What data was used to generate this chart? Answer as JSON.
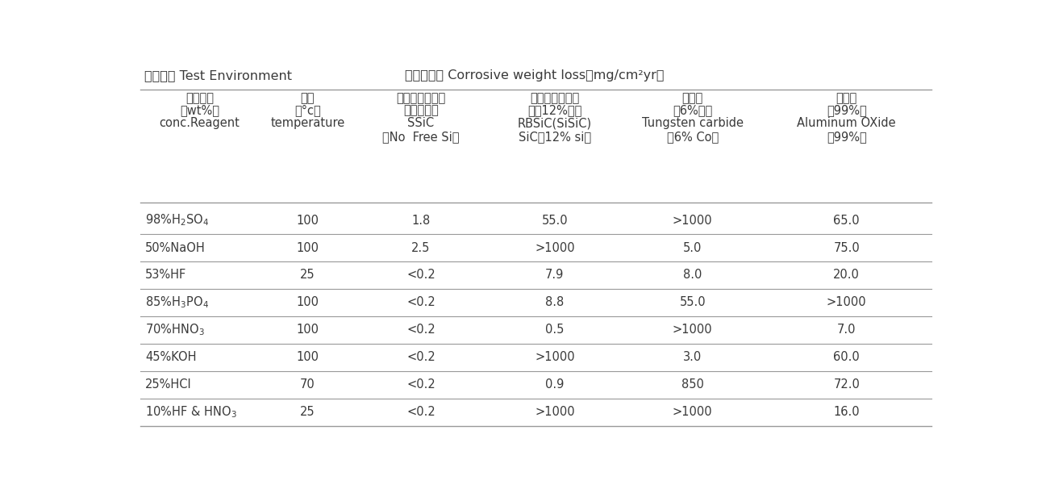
{
  "title_left": "测试环境 Test Environment",
  "title_right": "腔蚀性失重 Corrosive weight loss（mg/cm²yr）",
  "headers": [
    [
      "试剂浓度",
      "（wt%）",
      "conc.Reagent",
      "",
      ""
    ],
    [
      "温度",
      "（°c）",
      "temperature",
      "",
      ""
    ],
    [
      "无压烧结碳化硅",
      "（不含硅）",
      "SSiC",
      "（No  Free Si）",
      ""
    ],
    [
      "反应烧结碳化硅",
      "（含12%硅）",
      "RBSiC(SiSiC)",
      "SiC（12% si）",
      ""
    ],
    [
      "碳化鹨",
      "（6%魈）",
      "Tungsten carbide",
      "（6% Co）",
      ""
    ],
    [
      "氧化铝",
      "（99%）",
      "Aluminum OXide",
      "（99%）",
      ""
    ]
  ],
  "row_labels_math": [
    "98%H$_2$SO$_4$",
    "50%NaOH",
    "53%HF",
    "85%H$_3$PO$_4$",
    "70%HNO$_3$",
    "45%KOH",
    "25%HCl",
    "10%HF & HNO$_3$"
  ],
  "rows": [
    [
      "100",
      "1.8",
      "55.0",
      ">1000",
      "65.0"
    ],
    [
      "100",
      "2.5",
      ">1000",
      "5.0",
      "75.0"
    ],
    [
      "25",
      "<0.2",
      "7.9",
      "8.0",
      "20.0"
    ],
    [
      "100",
      "<0.2",
      "8.8",
      "55.0",
      ">1000"
    ],
    [
      "100",
      "<0.2",
      "0.5",
      ">1000",
      "7.0"
    ],
    [
      "100",
      "<0.2",
      ">1000",
      "3.0",
      "60.0"
    ],
    [
      "70",
      "<0.2",
      "0.9",
      "850",
      "72.0"
    ],
    [
      "25",
      "<0.2",
      ">1000",
      ">1000",
      "16.0"
    ]
  ],
  "background_color": "#ffffff",
  "text_color": "#3a3a3a",
  "line_color": "#999999",
  "font_size": 10.5,
  "header_font_size": 10.5,
  "title_font_size": 11.5
}
